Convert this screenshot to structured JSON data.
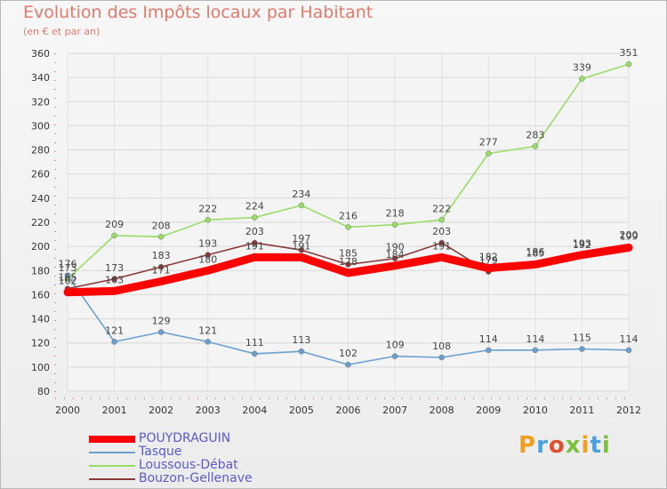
{
  "header": {
    "title": "Evolution des Impôts locaux par Habitant",
    "subtitle": "(en € et par an)"
  },
  "logo": {
    "text": "Proxiti",
    "colors": [
      "#f0a020",
      "#4aa0e0",
      "#e05030",
      "#7cc040",
      "#f0a020",
      "#4aa0e0",
      "#7cc040"
    ]
  },
  "chart_data": {
    "type": "line",
    "x": [
      "2000",
      "2001",
      "2002",
      "2003",
      "2004",
      "2005",
      "2006",
      "2007",
      "2008",
      "2009",
      "2010",
      "2011",
      "2012"
    ],
    "ylim": [
      80,
      360
    ],
    "yticks": [
      "80",
      "100",
      "120",
      "140",
      "160",
      "180",
      "200",
      "220",
      "240",
      "260",
      "280",
      "300",
      "320",
      "340",
      "360"
    ],
    "ytick_values": [
      80,
      100,
      120,
      140,
      160,
      180,
      200,
      220,
      240,
      260,
      280,
      300,
      320,
      340,
      360
    ],
    "grid": true,
    "series": [
      {
        "name": "POUYDRAGUIN",
        "color": "#ff0000",
        "values": [
          162,
          163,
          171,
          180,
          191,
          191,
          178,
          184,
          191,
          182,
          185,
          193,
          199
        ],
        "labels": [
          "162",
          "163",
          "171",
          "180",
          "191",
          "191",
          "178",
          "184",
          "191",
          "182",
          "185",
          "193",
          "199"
        ],
        "thick": true
      },
      {
        "name": "Tasque",
        "color": "#6aa0d0",
        "values": [
          176,
          121,
          129,
          121,
          111,
          113,
          102,
          109,
          108,
          114,
          114,
          115,
          114
        ],
        "labels": [
          "176",
          "121",
          "129",
          "121",
          "111",
          "113",
          "102",
          "109",
          "108",
          "114",
          "114",
          "115",
          "114"
        ]
      },
      {
        "name": "Loussous-Débat",
        "color": "#99dd66",
        "values": [
          173,
          209,
          208,
          222,
          224,
          234,
          216,
          218,
          222,
          277,
          283,
          339,
          351
        ],
        "labels": [
          "173",
          "209",
          "208",
          "222",
          "224",
          "234",
          "216",
          "218",
          "222",
          "277",
          "283",
          "339",
          "351"
        ]
      },
      {
        "name": "Bouzon-Gellenave",
        "color": "#8b3a3a",
        "values": [
          165,
          173,
          183,
          193,
          203,
          197,
          185,
          190,
          203,
          179,
          186,
          192,
          200
        ],
        "labels": [
          "165",
          "173",
          "183",
          "193",
          "203",
          "197",
          "185",
          "190",
          "203",
          "179",
          "186",
          "192",
          "200"
        ]
      }
    ]
  }
}
